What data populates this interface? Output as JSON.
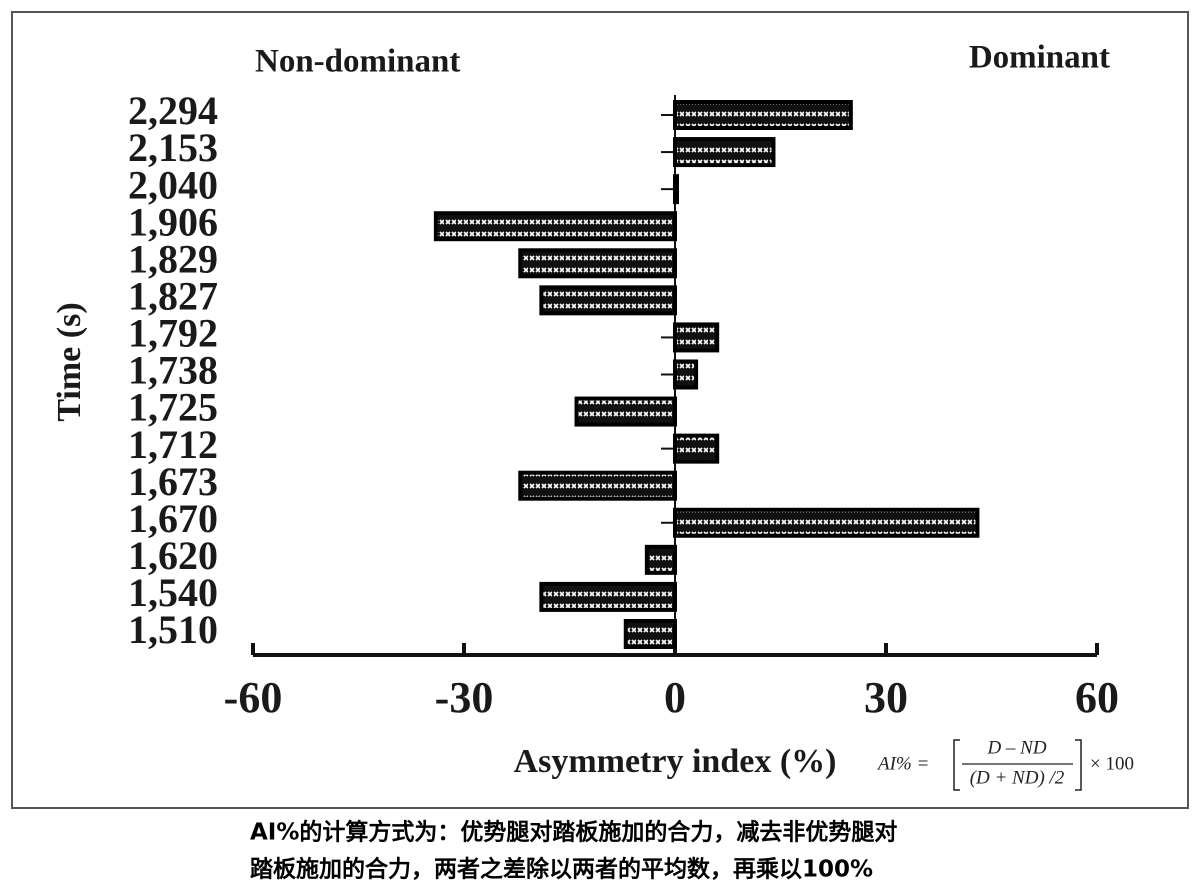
{
  "chart_data": {
    "type": "bar",
    "orientation": "horizontal",
    "left_label": "Non-dominant",
    "right_label": "Dominant",
    "x_label": "Asymmetry index (%)",
    "y_label": "Time (s)",
    "categories": [
      "2,294",
      "2,153",
      "2,040",
      "1,906",
      "1,829",
      "1,827",
      "1,792",
      "1,738",
      "1,725",
      "1,712",
      "1,673",
      "1,670",
      "1,620",
      "1,540",
      "1,510"
    ],
    "values": [
      25,
      14,
      0,
      -34,
      -22,
      -19,
      6,
      3,
      -14,
      6,
      -22,
      43,
      -4,
      -19,
      -7
    ],
    "color": "#000000",
    "xlim": [
      -60,
      60
    ],
    "xticks": [
      -60,
      -30,
      0,
      30,
      60
    ],
    "formula": {
      "lhs": "AI% =",
      "numerator": "D – ND",
      "denominator": "(D + ND) /2",
      "factor": "× 100"
    }
  },
  "caption": [
    "AI%的计算方式为：优势腿对踏板施加的合力，减去非优势腿对",
    "踏板施加的合力，两者之差除以两者的平均数，再乘以100%"
  ]
}
